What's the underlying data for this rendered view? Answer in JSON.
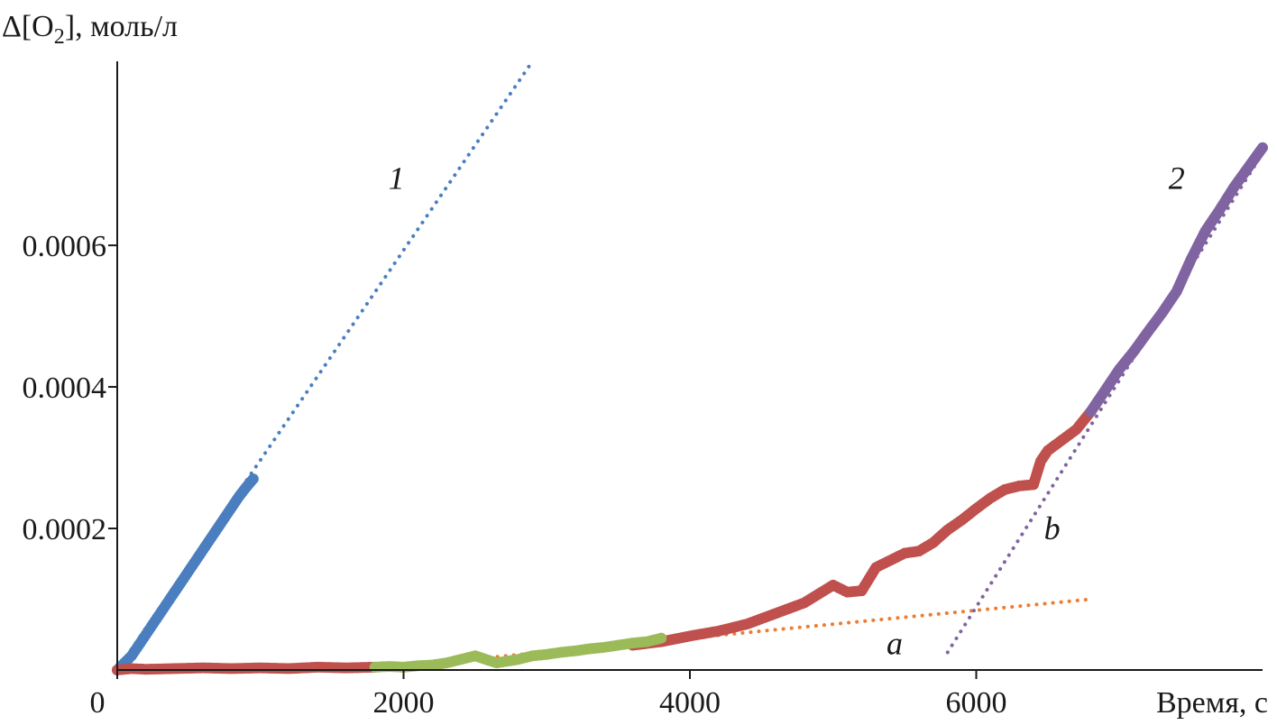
{
  "chart_data": {
    "type": "scatter",
    "ylabel_prefix": "Δ[O",
    "ylabel_sub": "2",
    "ylabel_suffix": "], моль/л",
    "xlabel": "Время, с",
    "xlim": [
      0,
      8000
    ],
    "ylim": [
      0,
      0.00086
    ],
    "x_ticks": [
      0,
      2000,
      4000,
      6000
    ],
    "x_tick_labels": [
      "0",
      "2000",
      "4000",
      "6000"
    ],
    "y_ticks": [
      0.0002,
      0.0004,
      0.0006
    ],
    "y_tick_labels": [
      "0.0002",
      "0.0004",
      "0.0006"
    ],
    "grid": false,
    "annotations": [
      {
        "text": "1",
        "x": 1950,
        "y": 0.00068
      },
      {
        "text": "2",
        "x": 7400,
        "y": 0.00068
      },
      {
        "text": "a",
        "x": 5430,
        "y": 2.2e-05
      },
      {
        "text": "b",
        "x": 6530,
        "y": 0.000185
      }
    ],
    "series": [
      {
        "color": "#4a7ebf",
        "style": "markers",
        "x": [
          0,
          50,
          100,
          150,
          200,
          250,
          300,
          350,
          400,
          450,
          500,
          550,
          600,
          650,
          700,
          750,
          800,
          850,
          900,
          950
        ],
        "y": [
          0,
          1e-05,
          2e-05,
          3.5e-05,
          5e-05,
          6.5e-05,
          8e-05,
          9.5e-05,
          0.00011,
          0.000125,
          0.00014,
          0.000155,
          0.00017,
          0.000185,
          0.0002,
          0.000215,
          0.00023,
          0.000245,
          0.000258,
          0.00027
        ]
      },
      {
        "color": "#c0504d",
        "style": "markers",
        "x": [
          0,
          100,
          200,
          400,
          600,
          800,
          1000,
          1200,
          1400,
          1600,
          1800,
          3600,
          3800,
          4000,
          4200,
          4400,
          4600,
          4800,
          5000,
          5100,
          5200,
          5300,
          5400,
          5500,
          5600,
          5700,
          5800,
          5900,
          6000,
          6100,
          6200,
          6300,
          6400,
          6450,
          6500,
          6600,
          6700,
          6800
        ],
        "y": [
          0,
          2e-06,
          1e-06,
          2e-06,
          3e-06,
          2e-06,
          3e-06,
          2e-06,
          4e-06,
          3e-06,
          4e-06,
          3.5e-05,
          4e-05,
          4.8e-05,
          5.5e-05,
          6.5e-05,
          8e-05,
          9.5e-05,
          0.00012,
          0.00011,
          0.000112,
          0.000145,
          0.000155,
          0.000165,
          0.000168,
          0.00018,
          0.000198,
          0.000212,
          0.000228,
          0.000243,
          0.000255,
          0.00026,
          0.000262,
          0.000295,
          0.00031,
          0.000325,
          0.00034,
          0.000365
        ]
      },
      {
        "color": "#9bbb59",
        "style": "markers",
        "x": [
          1800,
          1900,
          2000,
          2100,
          2200,
          2300,
          2400,
          2500,
          2650,
          2800,
          2900,
          3000,
          3100,
          3200,
          3300,
          3400,
          3500,
          3600,
          3700,
          3800
        ],
        "y": [
          4e-06,
          5e-06,
          4e-06,
          6e-06,
          7e-06,
          1e-05,
          1.5e-05,
          2e-05,
          1e-05,
          1.5e-05,
          2e-05,
          2.2e-05,
          2.5e-05,
          2.7e-05,
          3e-05,
          3.2e-05,
          3.5e-05,
          3.8e-05,
          4e-05,
          4.5e-05
        ]
      },
      {
        "color": "#8064a2",
        "style": "markers",
        "x": [
          6800,
          6900,
          7000,
          7100,
          7200,
          7300,
          7400,
          7500,
          7600,
          7700,
          7800,
          7900,
          8000
        ],
        "y": [
          0.000365,
          0.000395,
          0.000425,
          0.00045,
          0.000478,
          0.000505,
          0.000535,
          0.00058,
          0.00062,
          0.00065,
          0.000682,
          0.00071,
          0.000738
        ]
      },
      {
        "color": "#4a7ebf",
        "style": "dotted",
        "x": [
          0,
          2900
        ],
        "y": [
          0,
          0.00086
        ]
      },
      {
        "color": "#ed7d31",
        "style": "dotted",
        "x": [
          1800,
          6800
        ],
        "y": [
          2e-06,
          0.0001
        ]
      },
      {
        "color": "#8064a2",
        "style": "dotted",
        "x": [
          5800,
          8000
        ],
        "y": [
          2.5e-05,
          0.00073
        ]
      }
    ]
  }
}
